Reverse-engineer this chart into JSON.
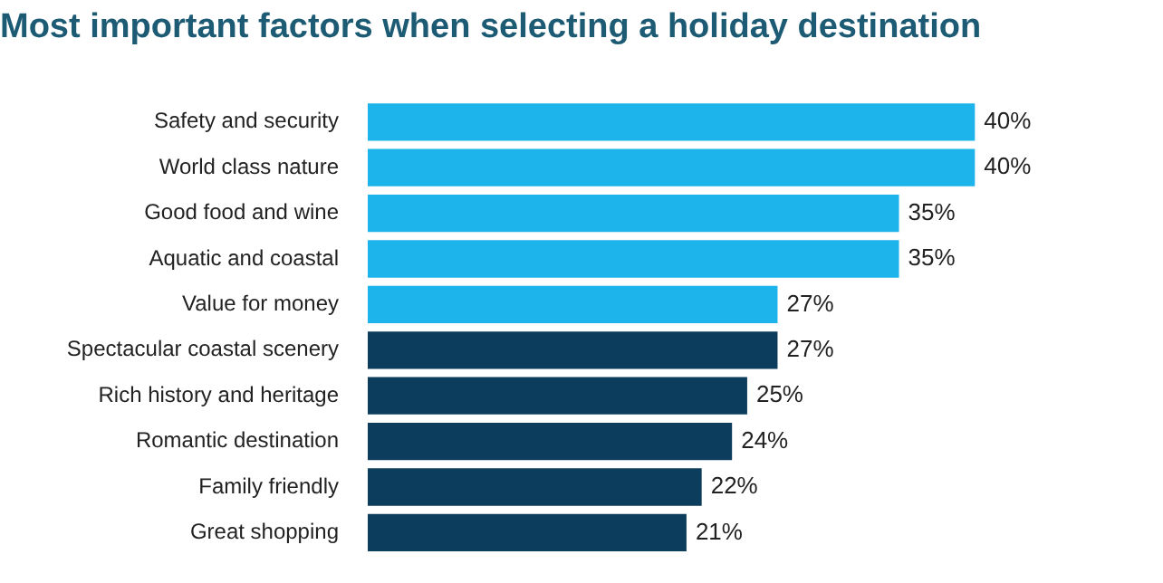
{
  "chart_data": {
    "type": "bar",
    "orientation": "horizontal",
    "title": "Most important factors when selecting a holiday destination",
    "categories": [
      "Safety and security",
      "World class nature",
      "Good food and wine",
      "Aquatic and coastal",
      "Value for money",
      "Spectacular coastal scenery",
      "Rich history and heritage",
      "Romantic destination",
      "Family friendly",
      "Great shopping"
    ],
    "values": [
      40,
      40,
      35,
      35,
      27,
      27,
      25,
      24,
      22,
      21
    ],
    "value_labels": [
      "40%",
      "40%",
      "35%",
      "35%",
      "27%",
      "27%",
      "25%",
      "24%",
      "22%",
      "21%"
    ],
    "colors": [
      "#1cb4ea",
      "#1cb4ea",
      "#1cb4ea",
      "#1cb4ea",
      "#1cb4ea",
      "#0d3d5c",
      "#0d3d5c",
      "#0d3d5c",
      "#0d3d5c",
      "#0d3d5c"
    ],
    "legend": false
  }
}
